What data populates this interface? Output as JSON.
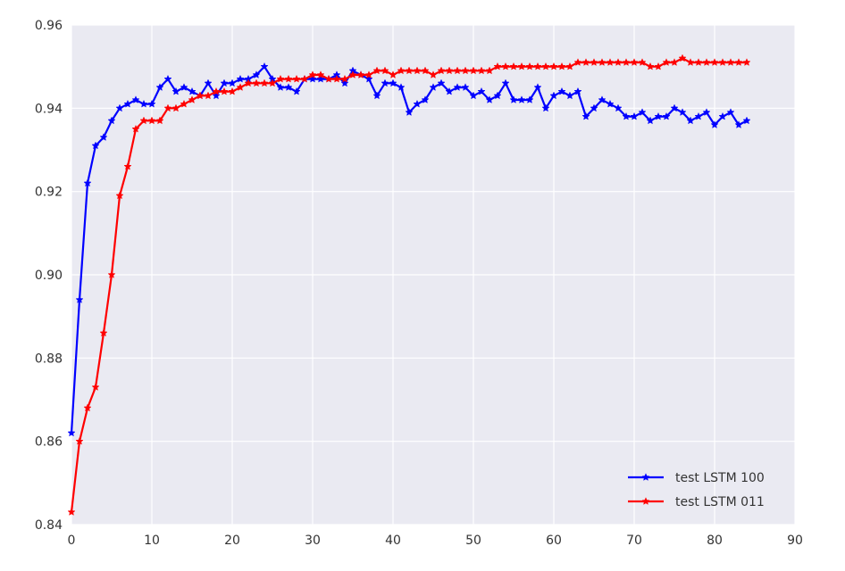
{
  "chart_data": {
    "type": "line",
    "title": "",
    "xlabel": "",
    "ylabel": "",
    "xlim": [
      0,
      90
    ],
    "ylim": [
      0.84,
      0.96
    ],
    "xticks": [
      "0",
      "10",
      "20",
      "30",
      "40",
      "50",
      "60",
      "70",
      "80",
      "90"
    ],
    "yticks": [
      "0.84",
      "0.86",
      "0.88",
      "0.90",
      "0.92",
      "0.94",
      "0.96"
    ],
    "grid": true,
    "legend_position": "lower-right",
    "background_color": "#eaeaf2",
    "grid_color": "#ffffff",
    "series": [
      {
        "name": "test LSTM 100",
        "color": "#0000ff",
        "marker": "star",
        "x": [
          0,
          1,
          2,
          3,
          4,
          5,
          6,
          7,
          8,
          9,
          10,
          11,
          12,
          13,
          14,
          15,
          16,
          17,
          18,
          19,
          20,
          21,
          22,
          23,
          24,
          25,
          26,
          27,
          28,
          29,
          30,
          31,
          32,
          33,
          34,
          35,
          36,
          37,
          38,
          39,
          40,
          41,
          42,
          43,
          44,
          45,
          46,
          47,
          48,
          49,
          50,
          51,
          52,
          53,
          54,
          55,
          56,
          57,
          58,
          59,
          60,
          61,
          62,
          63,
          64,
          65,
          66,
          67,
          68,
          69,
          70,
          71,
          72,
          73,
          74,
          75,
          76,
          77,
          78,
          79,
          80,
          81,
          82,
          83,
          84
        ],
        "values": [
          0.862,
          0.894,
          0.922,
          0.931,
          0.933,
          0.937,
          0.94,
          0.941,
          0.942,
          0.941,
          0.941,
          0.945,
          0.947,
          0.944,
          0.945,
          0.944,
          0.943,
          0.946,
          0.943,
          0.946,
          0.946,
          0.947,
          0.947,
          0.948,
          0.95,
          0.947,
          0.945,
          0.945,
          0.944,
          0.947,
          0.947,
          0.947,
          0.947,
          0.948,
          0.946,
          0.949,
          0.948,
          0.947,
          0.943,
          0.946,
          0.946,
          0.945,
          0.939,
          0.941,
          0.942,
          0.945,
          0.946,
          0.944,
          0.945,
          0.945,
          0.943,
          0.944,
          0.942,
          0.943,
          0.946,
          0.942,
          0.942,
          0.942,
          0.945,
          0.94,
          0.943,
          0.944,
          0.943,
          0.944,
          0.938,
          0.94,
          0.942,
          0.941,
          0.94,
          0.938,
          0.938,
          0.939,
          0.937,
          0.938,
          0.938,
          0.94,
          0.939,
          0.937,
          0.938,
          0.939,
          0.936,
          0.938,
          0.939,
          0.936,
          0.937
        ]
      },
      {
        "name": "test LSTM 011",
        "color": "#ff0000",
        "marker": "star",
        "x": [
          0,
          1,
          2,
          3,
          4,
          5,
          6,
          7,
          8,
          9,
          10,
          11,
          12,
          13,
          14,
          15,
          16,
          17,
          18,
          19,
          20,
          21,
          22,
          23,
          24,
          25,
          26,
          27,
          28,
          29,
          30,
          31,
          32,
          33,
          34,
          35,
          36,
          37,
          38,
          39,
          40,
          41,
          42,
          43,
          44,
          45,
          46,
          47,
          48,
          49,
          50,
          51,
          52,
          53,
          54,
          55,
          56,
          57,
          58,
          59,
          60,
          61,
          62,
          63,
          64,
          65,
          66,
          67,
          68,
          69,
          70,
          71,
          72,
          73,
          74,
          75,
          76,
          77,
          78,
          79,
          80,
          81,
          82,
          83,
          84
        ],
        "values": [
          0.843,
          0.86,
          0.868,
          0.873,
          0.886,
          0.9,
          0.919,
          0.926,
          0.935,
          0.937,
          0.937,
          0.937,
          0.94,
          0.94,
          0.941,
          0.942,
          0.943,
          0.943,
          0.944,
          0.944,
          0.944,
          0.945,
          0.946,
          0.946,
          0.946,
          0.946,
          0.947,
          0.947,
          0.947,
          0.947,
          0.948,
          0.948,
          0.947,
          0.947,
          0.947,
          0.948,
          0.948,
          0.948,
          0.949,
          0.949,
          0.948,
          0.949,
          0.949,
          0.949,
          0.949,
          0.948,
          0.949,
          0.949,
          0.949,
          0.949,
          0.949,
          0.949,
          0.949,
          0.95,
          0.95,
          0.95,
          0.95,
          0.95,
          0.95,
          0.95,
          0.95,
          0.95,
          0.95,
          0.951,
          0.951,
          0.951,
          0.951,
          0.951,
          0.951,
          0.951,
          0.951,
          0.951,
          0.95,
          0.95,
          0.951,
          0.951,
          0.952,
          0.951,
          0.951,
          0.951,
          0.951,
          0.951,
          0.951,
          0.951,
          0.951
        ]
      }
    ]
  }
}
